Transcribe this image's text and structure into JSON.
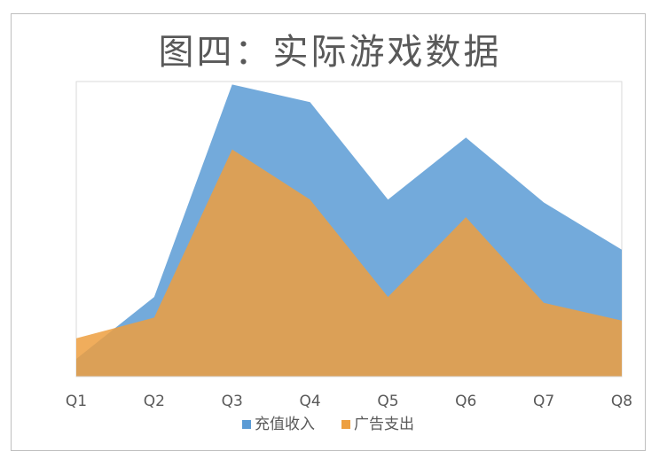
{
  "chart_data": {
    "type": "area",
    "title": "图四：实际游戏数据",
    "categories": [
      "Q1",
      "Q2",
      "Q3",
      "Q4",
      "Q5",
      "Q6",
      "Q7",
      "Q8"
    ],
    "ylim": [
      0,
      100
    ],
    "grid": false,
    "legend_position": "bottom",
    "series": [
      {
        "name": "充值收入",
        "color": "#5b9bd5",
        "values": [
          6,
          27,
          99,
          93,
          60,
          81,
          59,
          43
        ]
      },
      {
        "name": "广告支出",
        "color": "#ed9f40",
        "values": [
          13,
          20,
          77,
          60,
          27,
          54,
          25,
          19
        ]
      }
    ]
  }
}
